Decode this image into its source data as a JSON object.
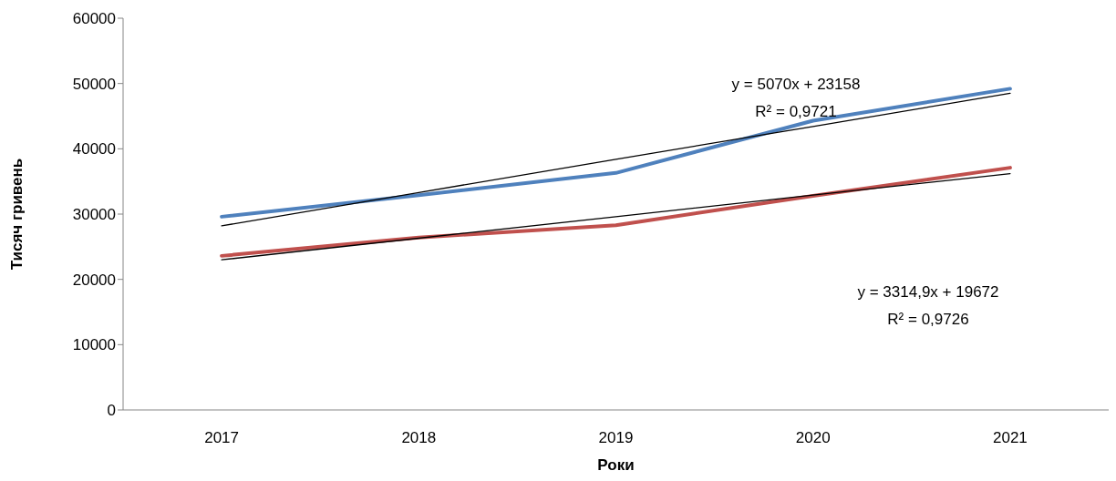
{
  "chart_data": {
    "type": "line",
    "xlabel": "Роки",
    "ylabel": "Тисяч гривень",
    "categories": [
      "2017",
      "2018",
      "2019",
      "2020",
      "2021"
    ],
    "series": [
      {
        "color": "#4f81bd",
        "values": [
          29600,
          32900,
          36300,
          44300,
          49200
        ]
      },
      {
        "color": "#c0504d",
        "values": [
          23600,
          26400,
          28300,
          32800,
          37100
        ]
      },
      {
        "type": "line",
        "color": "#000000",
        "values": [
          28200,
          33300,
          38400,
          43400,
          48500
        ]
      },
      {
        "type": "line",
        "color": "#000000",
        "values": [
          23000,
          26300,
          29600,
          32900,
          36200
        ]
      }
    ],
    "annotations": [
      "y = 5070x + 23158\nR² = 0,9721",
      "y = 3314,9x + 19672\nR² = 0,9726"
    ],
    "ylim": [
      0,
      60000
    ],
    "yticks": [
      0,
      10000,
      20000,
      30000,
      40000,
      50000,
      60000
    ],
    "marker": "none"
  }
}
